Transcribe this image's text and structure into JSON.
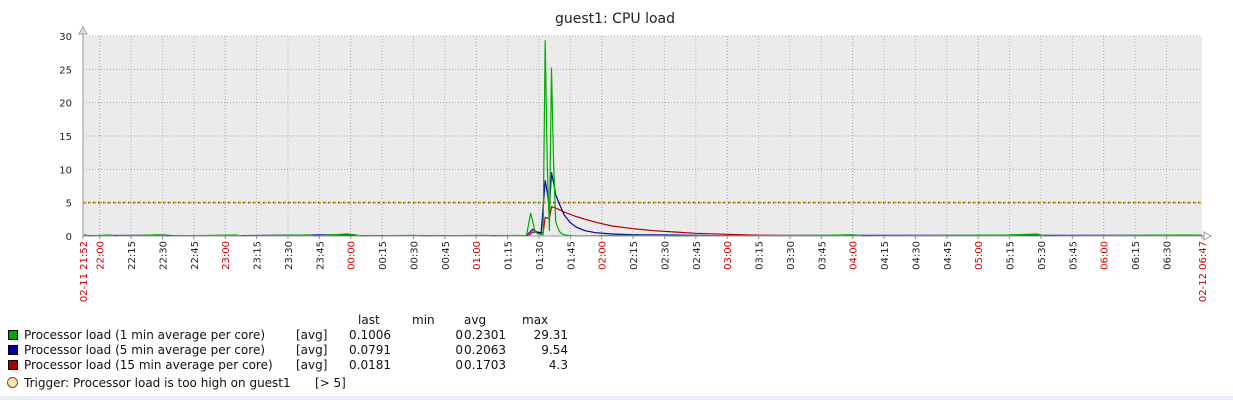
{
  "chart_data": {
    "type": "line",
    "title": "guest1: CPU load",
    "ylim": [
      0,
      30
    ],
    "y_ticks": [
      0,
      5,
      10,
      15,
      20,
      25,
      30
    ],
    "x_range": [
      "21:52",
      "06:47"
    ],
    "grid": true,
    "x_tick_labels": [
      {
        "t": "21:52",
        "label": "02-11 21:52",
        "color": "red"
      },
      {
        "t": "22:00",
        "label": "22:00",
        "color": "red"
      },
      {
        "t": "22:15",
        "label": "22:15",
        "color": "black"
      },
      {
        "t": "22:30",
        "label": "22:30",
        "color": "black"
      },
      {
        "t": "22:45",
        "label": "22:45",
        "color": "black"
      },
      {
        "t": "23:00",
        "label": "23:00",
        "color": "red"
      },
      {
        "t": "23:15",
        "label": "23:15",
        "color": "black"
      },
      {
        "t": "23:30",
        "label": "23:30",
        "color": "black"
      },
      {
        "t": "23:45",
        "label": "23:45",
        "color": "black"
      },
      {
        "t": "00:00",
        "label": "00:00",
        "color": "red"
      },
      {
        "t": "00:15",
        "label": "00:15",
        "color": "black"
      },
      {
        "t": "00:30",
        "label": "00:30",
        "color": "black"
      },
      {
        "t": "00:45",
        "label": "00:45",
        "color": "black"
      },
      {
        "t": "01:00",
        "label": "01:00",
        "color": "red"
      },
      {
        "t": "01:15",
        "label": "01:15",
        "color": "black"
      },
      {
        "t": "01:30",
        "label": "01:30",
        "color": "black"
      },
      {
        "t": "01:45",
        "label": "01:45",
        "color": "black"
      },
      {
        "t": "02:00",
        "label": "02:00",
        "color": "red"
      },
      {
        "t": "02:15",
        "label": "02:15",
        "color": "black"
      },
      {
        "t": "02:30",
        "label": "02:30",
        "color": "black"
      },
      {
        "t": "02:45",
        "label": "02:45",
        "color": "black"
      },
      {
        "t": "03:00",
        "label": "03:00",
        "color": "red"
      },
      {
        "t": "03:15",
        "label": "03:15",
        "color": "black"
      },
      {
        "t": "03:30",
        "label": "03:30",
        "color": "black"
      },
      {
        "t": "03:45",
        "label": "03:45",
        "color": "black"
      },
      {
        "t": "04:00",
        "label": "04:00",
        "color": "red"
      },
      {
        "t": "04:15",
        "label": "04:15",
        "color": "black"
      },
      {
        "t": "04:30",
        "label": "04:30",
        "color": "black"
      },
      {
        "t": "04:45",
        "label": "04:45",
        "color": "black"
      },
      {
        "t": "05:00",
        "label": "05:00",
        "color": "red"
      },
      {
        "t": "05:15",
        "label": "05:15",
        "color": "black"
      },
      {
        "t": "05:30",
        "label": "05:30",
        "color": "black"
      },
      {
        "t": "05:45",
        "label": "05:45",
        "color": "black"
      },
      {
        "t": "06:00",
        "label": "06:00",
        "color": "red"
      },
      {
        "t": "06:15",
        "label": "06:15",
        "color": "black"
      },
      {
        "t": "06:30",
        "label": "06:30",
        "color": "black"
      },
      {
        "t": "06:47",
        "label": "02-12 06:47",
        "color": "red"
      }
    ],
    "series": [
      {
        "name": "Processor load (1 min average per core)",
        "color": "#00aa00",
        "points": [
          [
            "21:52",
            0
          ],
          [
            "21:53",
            0.2
          ],
          [
            "21:55",
            0
          ],
          [
            "22:05",
            0.15
          ],
          [
            "22:07",
            0
          ],
          [
            "22:20",
            0.1
          ],
          [
            "22:28",
            0.2
          ],
          [
            "22:32",
            0
          ],
          [
            "22:55",
            0.1
          ],
          [
            "23:05",
            0.15
          ],
          [
            "23:08",
            0
          ],
          [
            "23:40",
            0.15
          ],
          [
            "23:43",
            0
          ],
          [
            "23:58",
            0.3
          ],
          [
            "00:02",
            0.2
          ],
          [
            "00:05",
            0
          ],
          [
            "00:30",
            0.1
          ],
          [
            "00:35",
            0
          ],
          [
            "01:05",
            0.1
          ],
          [
            "01:08",
            0
          ],
          [
            "01:20",
            0.1
          ],
          [
            "01:24",
            0
          ],
          [
            "01:26",
            3.4
          ],
          [
            "01:27",
            2.2
          ],
          [
            "01:28",
            0.8
          ],
          [
            "01:29",
            0.4
          ],
          [
            "01:30",
            0.3
          ],
          [
            "01:31",
            0.2
          ],
          [
            "01:32",
            0.2
          ],
          [
            "01:33",
            29.3
          ],
          [
            "01:34",
            10.5
          ],
          [
            "01:35",
            0.8
          ],
          [
            "01:36",
            25.2
          ],
          [
            "01:37",
            10.8
          ],
          [
            "01:38",
            2.2
          ],
          [
            "01:39",
            1.2
          ],
          [
            "01:40",
            0.6
          ],
          [
            "01:41",
            0.3
          ],
          [
            "01:42",
            0.2
          ],
          [
            "01:44",
            0.1
          ],
          [
            "01:48",
            0
          ],
          [
            "02:10",
            0.1
          ],
          [
            "02:20",
            0.1
          ],
          [
            "02:35",
            0
          ],
          [
            "03:45",
            0.1
          ],
          [
            "04:00",
            0.2
          ],
          [
            "04:05",
            0
          ],
          [
            "05:15",
            0.15
          ],
          [
            "05:28",
            0.3
          ],
          [
            "05:32",
            0
          ],
          [
            "06:15",
            0.1
          ],
          [
            "06:40",
            0.15
          ],
          [
            "06:47",
            0.1
          ]
        ]
      },
      {
        "name": "Processor load (5 min average per core)",
        "color": "#0000aa",
        "points": [
          [
            "21:52",
            0.05
          ],
          [
            "22:20",
            0.1
          ],
          [
            "22:30",
            0.15
          ],
          [
            "22:35",
            0.05
          ],
          [
            "23:00",
            0.05
          ],
          [
            "23:58",
            0.2
          ],
          [
            "00:05",
            0.05
          ],
          [
            "01:24",
            0.05
          ],
          [
            "01:27",
            1.0
          ],
          [
            "01:29",
            0.6
          ],
          [
            "01:31",
            0.4
          ],
          [
            "01:33",
            8.3
          ],
          [
            "01:34",
            6.5
          ],
          [
            "01:35",
            4.2
          ],
          [
            "01:36",
            9.5
          ],
          [
            "01:37",
            8.0
          ],
          [
            "01:38",
            6.2
          ],
          [
            "01:40",
            4.6
          ],
          [
            "01:42",
            3.2
          ],
          [
            "01:45",
            2.0
          ],
          [
            "01:48",
            1.3
          ],
          [
            "01:52",
            0.8
          ],
          [
            "01:57",
            0.5
          ],
          [
            "02:05",
            0.3
          ],
          [
            "02:15",
            0.2
          ],
          [
            "02:30",
            0.15
          ],
          [
            "02:45",
            0.1
          ],
          [
            "03:00",
            0.05
          ],
          [
            "04:00",
            0.1
          ],
          [
            "05:10",
            0.1
          ],
          [
            "05:20",
            0.2
          ],
          [
            "05:25",
            0.1
          ],
          [
            "06:20",
            0.1
          ],
          [
            "06:47",
            0.1
          ]
        ]
      },
      {
        "name": "Processor load (15 min average per core)",
        "color": "#aa0000",
        "points": [
          [
            "21:52",
            0.02
          ],
          [
            "01:25",
            0.02
          ],
          [
            "01:27",
            0.6
          ],
          [
            "01:32",
            0.5
          ],
          [
            "01:33",
            2.8
          ],
          [
            "01:35",
            2.6
          ],
          [
            "01:36",
            4.4
          ],
          [
            "01:38",
            4.2
          ],
          [
            "01:42",
            3.6
          ],
          [
            "01:47",
            3.0
          ],
          [
            "01:52",
            2.5
          ],
          [
            "01:58",
            2.0
          ],
          [
            "02:05",
            1.5
          ],
          [
            "02:15",
            1.1
          ],
          [
            "02:25",
            0.8
          ],
          [
            "02:35",
            0.6
          ],
          [
            "02:45",
            0.4
          ],
          [
            "03:00",
            0.25
          ],
          [
            "03:15",
            0.12
          ],
          [
            "03:30",
            0.08
          ],
          [
            "04:00",
            0.05
          ],
          [
            "05:00",
            0.03
          ],
          [
            "06:47",
            0.03
          ]
        ]
      }
    ],
    "trigger": {
      "value": 5,
      "color": "#d8a800"
    }
  },
  "legend": {
    "headers": {
      "last": "last",
      "min": "min",
      "avg": "avg",
      "max": "max"
    },
    "items": [
      {
        "color": "#00aa00",
        "name": "Processor load (1 min average per core)",
        "func": "[avg]",
        "last": "0.1006",
        "min": "0",
        "avg": "0.2301",
        "max": "29.31"
      },
      {
        "color": "#0000aa",
        "name": "Processor load (5 min average per core)",
        "func": "[avg]",
        "last": "0.0791",
        "min": "0",
        "avg": "0.2063",
        "max": "9.54"
      },
      {
        "color": "#aa0000",
        "name": "Processor load (15 min average per core)",
        "func": "[avg]",
        "last": "0.0181",
        "min": "0",
        "avg": "0.1703",
        "max": "4.3"
      }
    ],
    "trigger": {
      "label": "Trigger: Processor load is too high on guest1",
      "condition": "[> 5]",
      "color": "#ffe8a0"
    }
  }
}
